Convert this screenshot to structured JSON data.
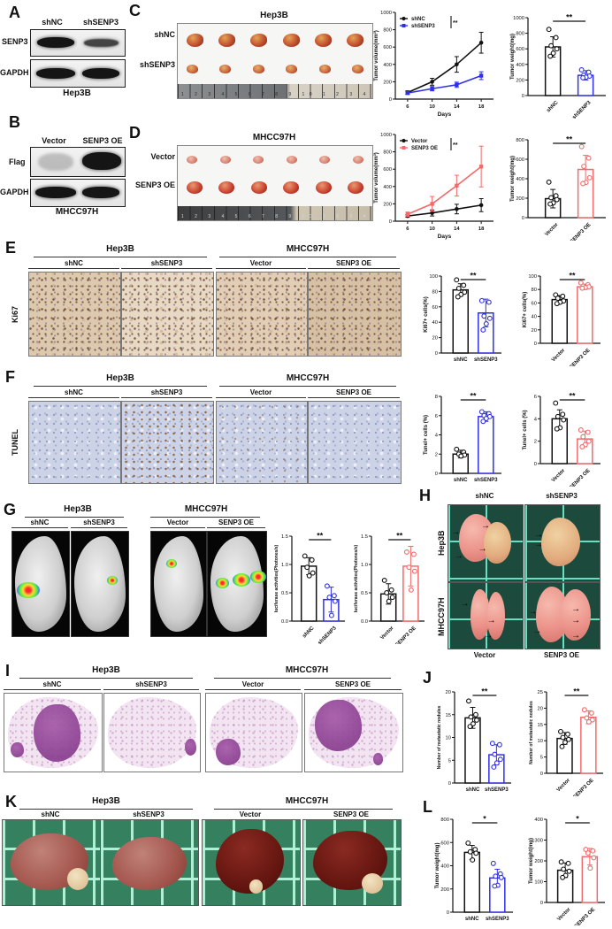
{
  "letters": {
    "a": "A",
    "b": "B",
    "c": "C",
    "d": "D",
    "e": "E",
    "f": "F",
    "g": "G",
    "h": "H",
    "i": "I",
    "j": "J",
    "k": "K",
    "l": "L"
  },
  "labels": {
    "shnc": "shNC",
    "shsenp3": "shSENP3",
    "vector": "Vector",
    "oe": "SENP3 OE",
    "hep3b": "Hep3B",
    "mhcc": "MHCC97H",
    "senp3": "SENP3",
    "gapdh": "GAPDH",
    "flag": "Flag",
    "ki67": "Ki67",
    "tunel": "TUNEL"
  },
  "rulers": {
    "c": "1 2 3 4 5 6 7 8 9 10 1 2 3 4 5 6 7 8",
    "d": "1 2 3 4 5 6 7 8 9 10 1 2 3 4 5 6"
  },
  "icons": {
    "arrow": "→"
  },
  "colors": {
    "black": "#111111",
    "blue": "#2f2fe8",
    "red": "#f26a6a"
  },
  "chart_data": [
    {
      "panel": "C",
      "type": "line",
      "title": "",
      "xlabel": "Days",
      "ylabel": "Tumor volume(mm³)",
      "ylim": [
        0,
        1000
      ],
      "yticks": [
        0,
        200,
        400,
        600,
        800,
        1000
      ],
      "x": [
        6,
        10,
        14,
        18
      ],
      "sig": "**",
      "legend_position": "top-left",
      "series": [
        {
          "name": "shNC",
          "color": "#111111",
          "marker": "circle",
          "values": [
            75,
            200,
            400,
            650
          ],
          "errors": [
            20,
            40,
            90,
            120
          ]
        },
        {
          "name": "shSENP3",
          "color": "#2f2fe8",
          "marker": "square",
          "values": [
            70,
            120,
            165,
            270
          ],
          "errors": [
            15,
            25,
            30,
            45
          ]
        }
      ]
    },
    {
      "panel": "C",
      "type": "bar",
      "ylabel": "Tumor weight(mg)",
      "ylim": [
        0,
        1000
      ],
      "yticks": [
        0,
        200,
        400,
        600,
        800,
        1000
      ],
      "sig": "**",
      "rot": true,
      "categories": [
        "shNC",
        "shSENP3"
      ],
      "colors": [
        "#111111",
        "#2f2fe8"
      ],
      "values": [
        625,
        260
      ],
      "errors": [
        130,
        60
      ],
      "points": [
        [
          850,
          745,
          640,
          600,
          545,
          505
        ],
        [
          330,
          300,
          262,
          250,
          236,
          228
        ]
      ]
    },
    {
      "panel": "D",
      "type": "line",
      "title": "",
      "xlabel": "Days",
      "ylabel": "Tumor volume(mm³)",
      "ylim": [
        0,
        1000
      ],
      "yticks": [
        0,
        200,
        400,
        600,
        800,
        1000
      ],
      "x": [
        6,
        10,
        14,
        18
      ],
      "sig": "**",
      "legend_position": "top-left",
      "series": [
        {
          "name": "Vector",
          "color": "#111111",
          "marker": "circle",
          "values": [
            60,
            95,
            140,
            185
          ],
          "errors": [
            15,
            35,
            55,
            75
          ]
        },
        {
          "name": "SENP3 OE",
          "color": "#f26a6a",
          "marker": "square",
          "values": [
            80,
            200,
            410,
            630
          ],
          "errors": [
            25,
            85,
            120,
            235
          ]
        }
      ]
    },
    {
      "panel": "D",
      "type": "bar",
      "ylabel": "Tumor weight(mg)",
      "ylim": [
        0,
        800
      ],
      "yticks": [
        0,
        200,
        400,
        600,
        800
      ],
      "sig": "**",
      "rot": true,
      "categories": [
        "Vector",
        "SENP3 OE"
      ],
      "colors": [
        "#111111",
        "#f26a6a"
      ],
      "values": [
        195,
        495
      ],
      "errors": [
        95,
        145
      ],
      "points": [
        [
          365,
          225,
          205,
          185,
          152,
          140
        ],
        [
          730,
          612,
          527,
          410,
          362,
          350
        ]
      ]
    },
    {
      "panel": "E",
      "type": "bar",
      "ylabel": "Ki67+ cells(%)",
      "ylim": [
        0,
        100
      ],
      "yticks": [
        0,
        20,
        40,
        60,
        80,
        100
      ],
      "sig": "**",
      "rot": false,
      "categories": [
        "shNC",
        "shSENP3"
      ],
      "colors": [
        "#111111",
        "#2f2fe8"
      ],
      "values": [
        82,
        52
      ],
      "errors": [
        8,
        18
      ],
      "points": [
        [
          95,
          88,
          84,
          79,
          76,
          73
        ],
        [
          68,
          66,
          48,
          45,
          38,
          30
        ]
      ]
    },
    {
      "panel": "E",
      "type": "bar",
      "ylabel": "Ki67+ cells(%)",
      "ylim": [
        0,
        100
      ],
      "yticks": [
        0,
        20,
        40,
        60,
        80,
        100
      ],
      "sig": "**",
      "rot": true,
      "categories": [
        "Vector",
        "SENP3 OE"
      ],
      "colors": [
        "#111111",
        "#f26a6a"
      ],
      "values": [
        65,
        84
      ],
      "errors": [
        6,
        4
      ],
      "points": [
        [
          72,
          70,
          67,
          63,
          61,
          59
        ],
        [
          90,
          87,
          85,
          84,
          83,
          82
        ]
      ]
    },
    {
      "panel": "F",
      "type": "bar",
      "ylabel": "Tunel+ cells (%)",
      "ylim": [
        0,
        8
      ],
      "yticks": [
        0,
        2,
        4,
        6,
        8
      ],
      "sig": "**",
      "rot": false,
      "categories": [
        "shNC",
        "shSENP3"
      ],
      "colors": [
        "#111111",
        "#2f2fe8"
      ],
      "values": [
        2,
        5.9
      ],
      "errors": [
        0.4,
        0.5
      ],
      "points": [
        [
          2.5,
          2.2,
          2.0,
          1.9,
          1.8
        ],
        [
          6.4,
          6.2,
          6.0,
          5.9,
          5.7,
          5.4
        ]
      ]
    },
    {
      "panel": "F",
      "type": "bar",
      "ylabel": "Tunel+ cells (%)",
      "ylim": [
        0,
        6
      ],
      "yticks": [
        0,
        2,
        4,
        6
      ],
      "sig": "**",
      "rot": true,
      "categories": [
        "Vector",
        "SENP3 OE"
      ],
      "colors": [
        "#111111",
        "#f26a6a"
      ],
      "values": [
        4,
        2.2
      ],
      "errors": [
        0.8,
        0.7
      ],
      "points": [
        [
          5.4,
          4.4,
          4.2,
          3.9,
          3.2,
          3.1
        ],
        [
          3.0,
          2.8,
          2.4,
          2.0,
          1.7,
          1.5
        ]
      ]
    },
    {
      "panel": "G",
      "type": "bar",
      "ylabel": "luciferase activities(Photones/s)",
      "ylim": [
        0,
        1.5
      ],
      "yticks": [
        0,
        0.5,
        1,
        1.5
      ],
      "ytick_labels": [
        "0.0",
        "0.5",
        "1.0",
        "1.5"
      ],
      "sig": "**",
      "rot": true,
      "categories": [
        "shNC",
        "shSENP3"
      ],
      "colors": [
        "#111111",
        "#2f2fe8"
      ],
      "values": [
        0.97,
        0.38
      ],
      "errors": [
        0.15,
        0.22
      ],
      "points": [
        [
          1.15,
          1.08,
          0.95,
          0.85,
          0.8
        ],
        [
          0.62,
          0.45,
          0.42,
          0.35,
          0.1
        ]
      ]
    },
    {
      "panel": "G",
      "type": "bar",
      "ylabel": "luciferase activities(Photones/s)",
      "ylim": [
        0,
        1.5
      ],
      "yticks": [
        0,
        0.5,
        1,
        1.5
      ],
      "ytick_labels": [
        "0.0",
        "0.5",
        "1.0",
        "1.5"
      ],
      "sig": "**",
      "rot": true,
      "categories": [
        "Vector",
        "SENP3 OE"
      ],
      "colors": [
        "#111111",
        "#f26a6a"
      ],
      "values": [
        0.48,
        0.97
      ],
      "errors": [
        0.18,
        0.35
      ],
      "points": [
        [
          0.72,
          0.55,
          0.5,
          0.42,
          0.35
        ],
        [
          1.22,
          1.18,
          0.95,
          0.88,
          0.55
        ]
      ]
    },
    {
      "panel": "J",
      "type": "bar",
      "ylabel": "Number of metastatic nodules",
      "ylim": [
        0,
        20
      ],
      "yticks": [
        0,
        5,
        10,
        15,
        20
      ],
      "sig": "**",
      "rot": false,
      "categories": [
        "shNC",
        "shSENP3"
      ],
      "colors": [
        "#111111",
        "#2f2fe8"
      ],
      "values": [
        14.3,
        6.2
      ],
      "errors": [
        2.3,
        2.2
      ],
      "points": [
        [
          18,
          15,
          14.5,
          13.8,
          13,
          12.4
        ],
        [
          8.7,
          8.4,
          6.3,
          5.2,
          4.4,
          3.5
        ]
      ]
    },
    {
      "panel": "J",
      "type": "bar",
      "ylabel": "Number of metastatic nodules",
      "ylim": [
        0,
        25
      ],
      "yticks": [
        0,
        5,
        10,
        15,
        20,
        25
      ],
      "sig": "**",
      "rot": true,
      "categories": [
        "Vector",
        "SENP3 OE"
      ],
      "colors": [
        "#111111",
        "#f26a6a"
      ],
      "values": [
        10.7,
        17.2
      ],
      "errors": [
        1.8,
        2.0
      ],
      "points": [
        [
          12.8,
          12,
          11,
          10.4,
          9.5,
          8.2
        ],
        [
          19.5,
          18.5,
          17,
          16.4,
          15.8
        ]
      ]
    },
    {
      "panel": "L",
      "type": "bar",
      "ylabel": "Tumor weight(mg)",
      "ylim": [
        0,
        800
      ],
      "yticks": [
        0,
        200,
        400,
        600,
        800
      ],
      "sig": "*",
      "rot": false,
      "categories": [
        "shNC",
        "shSENP3"
      ],
      "colors": [
        "#111111",
        "#2f2fe8"
      ],
      "values": [
        515,
        295
      ],
      "errors": [
        60,
        75
      ],
      "points": [
        [
          595,
          540,
          520,
          508,
          450
        ],
        [
          420,
          330,
          310,
          298,
          232,
          225
        ]
      ]
    },
    {
      "panel": "L",
      "type": "bar",
      "ylabel": "Tumor weight(mg)",
      "ylim": [
        0,
        400
      ],
      "yticks": [
        0,
        100,
        200,
        300,
        400
      ],
      "sig": "*",
      "rot": true,
      "categories": [
        "Vector",
        "SENP3 OE"
      ],
      "colors": [
        "#111111",
        "#f26a6a"
      ],
      "values": [
        155,
        220
      ],
      "errors": [
        35,
        40
      ],
      "points": [
        [
          195,
          188,
          160,
          150,
          130,
          120
        ],
        [
          255,
          248,
          238,
          215,
          165
        ]
      ]
    }
  ]
}
